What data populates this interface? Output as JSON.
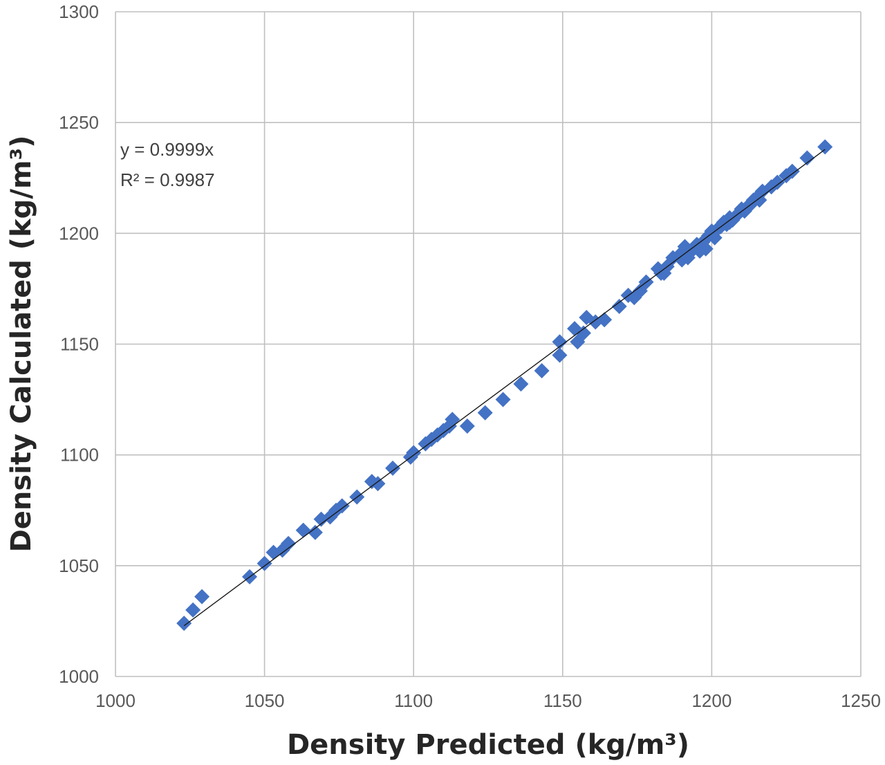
{
  "chart_data": {
    "type": "scatter",
    "xlabel": "Density Predicted (kg/m³)",
    "ylabel": "Density Calculated (kg/m³)",
    "xlim": [
      1000,
      1250
    ],
    "ylim": [
      1000,
      1300
    ],
    "x_ticks": [
      "1000",
      "1050",
      "1100",
      "1150",
      "1200",
      "1250"
    ],
    "y_ticks": [
      "1000",
      "1050",
      "1100",
      "1150",
      "1200",
      "1250",
      "1300"
    ],
    "grid": true,
    "marker": "diamond",
    "marker_color": "#4472c4",
    "trendline": {
      "equation": "y = 0.9999x",
      "r_squared": "R² = 0.9987",
      "slope": 0.9999,
      "x_range": [
        1023,
        1238
      ],
      "color": "#1a1a1a"
    },
    "points": [
      [
        1023,
        1024
      ],
      [
        1026,
        1030
      ],
      [
        1029,
        1036
      ],
      [
        1045,
        1045
      ],
      [
        1050,
        1051
      ],
      [
        1053,
        1056
      ],
      [
        1056,
        1057
      ],
      [
        1058,
        1060
      ],
      [
        1063,
        1066
      ],
      [
        1067,
        1065
      ],
      [
        1069,
        1071
      ],
      [
        1072,
        1072
      ],
      [
        1074,
        1075
      ],
      [
        1076,
        1077
      ],
      [
        1081,
        1081
      ],
      [
        1086,
        1088
      ],
      [
        1088,
        1087
      ],
      [
        1093,
        1094
      ],
      [
        1099,
        1099
      ],
      [
        1100,
        1101
      ],
      [
        1104,
        1105
      ],
      [
        1106,
        1107
      ],
      [
        1108,
        1109
      ],
      [
        1110,
        1111
      ],
      [
        1113,
        1116
      ],
      [
        1112,
        1113
      ],
      [
        1118,
        1113
      ],
      [
        1124,
        1119
      ],
      [
        1130,
        1125
      ],
      [
        1136,
        1132
      ],
      [
        1143,
        1138
      ],
      [
        1149,
        1145
      ],
      [
        1149,
        1151
      ],
      [
        1154,
        1157
      ],
      [
        1155,
        1151
      ],
      [
        1157,
        1155
      ],
      [
        1158,
        1162
      ],
      [
        1161,
        1160
      ],
      [
        1164,
        1161
      ],
      [
        1169,
        1167
      ],
      [
        1172,
        1172
      ],
      [
        1174,
        1171
      ],
      [
        1176,
        1174
      ],
      [
        1178,
        1178
      ],
      [
        1182,
        1184
      ],
      [
        1183,
        1182
      ],
      [
        1184,
        1182
      ],
      [
        1185,
        1185
      ],
      [
        1187,
        1189
      ],
      [
        1189,
        1190
      ],
      [
        1190,
        1188
      ],
      [
        1191,
        1194
      ],
      [
        1192,
        1189
      ],
      [
        1194,
        1193
      ],
      [
        1195,
        1195
      ],
      [
        1196,
        1192
      ],
      [
        1197,
        1196
      ],
      [
        1198,
        1193
      ],
      [
        1199,
        1199
      ],
      [
        1200,
        1201
      ],
      [
        1201,
        1198
      ],
      [
        1202,
        1202
      ],
      [
        1203,
        1203
      ],
      [
        1204,
        1205
      ],
      [
        1205,
        1204
      ],
      [
        1206,
        1207
      ],
      [
        1206,
        1205
      ],
      [
        1207,
        1206
      ],
      [
        1209,
        1209
      ],
      [
        1210,
        1211
      ],
      [
        1211,
        1210
      ],
      [
        1212,
        1212
      ],
      [
        1213,
        1213
      ],
      [
        1214,
        1215
      ],
      [
        1215,
        1216
      ],
      [
        1216,
        1215
      ],
      [
        1217,
        1219
      ],
      [
        1220,
        1221
      ],
      [
        1222,
        1223
      ],
      [
        1225,
        1226
      ],
      [
        1227,
        1228
      ],
      [
        1232,
        1234
      ],
      [
        1238,
        1239
      ]
    ]
  }
}
